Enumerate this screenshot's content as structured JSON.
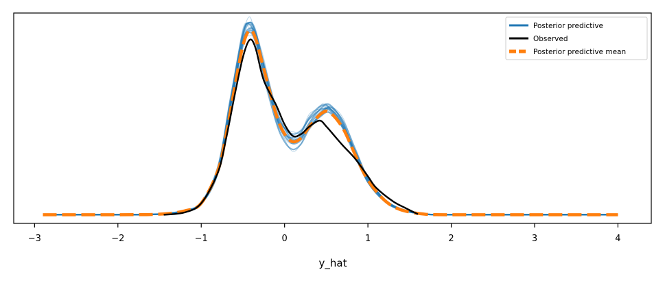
{
  "chart_data": {
    "type": "line",
    "title": "",
    "xlabel": "y_hat",
    "ylabel": "",
    "xlim": [
      -3.25,
      4.4
    ],
    "ylim": [
      -0.045,
      1.05
    ],
    "x_ticks": [
      -3,
      -2,
      -1,
      0,
      1,
      2,
      3,
      4
    ],
    "x_tick_labels": [
      "−3",
      "−2",
      "−1",
      "0",
      "1",
      "2",
      "3",
      "4"
    ],
    "y_ticks_visible": false,
    "grid": false,
    "legend_position": "top-right",
    "colors": {
      "posterior_predictive": "#1f77b4",
      "observed": "#000000",
      "mean": "#ff7f0e"
    },
    "series": [
      {
        "name": "Posterior predictive",
        "style": "many thin translucent blue density curves",
        "x": [
          -2.9,
          -2.0,
          -1.5,
          -1.2,
          -1.0,
          -0.8,
          -0.65,
          -0.5,
          -0.42,
          -0.35,
          -0.25,
          -0.1,
          0.0,
          0.1,
          0.2,
          0.3,
          0.45,
          0.55,
          0.7,
          0.85,
          1.0,
          1.2,
          1.4,
          1.7,
          2.0,
          3.0,
          4.0
        ],
        "draws_y": [
          [
            0.0,
            0.0,
            0.003,
            0.02,
            0.06,
            0.24,
            0.58,
            0.93,
            1.0,
            0.96,
            0.78,
            0.52,
            0.43,
            0.38,
            0.4,
            0.47,
            0.54,
            0.55,
            0.47,
            0.32,
            0.18,
            0.08,
            0.03,
            0.002,
            0.0,
            0.0,
            0.0
          ],
          [
            0.0,
            0.0,
            0.003,
            0.018,
            0.055,
            0.22,
            0.55,
            0.88,
            0.96,
            0.92,
            0.76,
            0.53,
            0.45,
            0.42,
            0.44,
            0.5,
            0.55,
            0.54,
            0.45,
            0.3,
            0.17,
            0.07,
            0.025,
            0.002,
            0.0,
            0.0,
            0.0
          ],
          [
            0.0,
            0.0,
            0.004,
            0.022,
            0.065,
            0.25,
            0.6,
            0.95,
            0.99,
            0.92,
            0.73,
            0.48,
            0.38,
            0.34,
            0.37,
            0.45,
            0.53,
            0.56,
            0.49,
            0.34,
            0.19,
            0.08,
            0.03,
            0.002,
            0.0,
            0.0,
            0.0
          ],
          [
            0.0,
            0.0,
            0.003,
            0.02,
            0.058,
            0.23,
            0.57,
            0.9,
            0.97,
            0.94,
            0.77,
            0.5,
            0.41,
            0.37,
            0.39,
            0.46,
            0.52,
            0.53,
            0.46,
            0.33,
            0.19,
            0.08,
            0.028,
            0.002,
            0.0,
            0.0,
            0.0
          ],
          [
            0.0,
            0.0,
            0.003,
            0.021,
            0.062,
            0.24,
            0.59,
            0.94,
            1.0,
            0.95,
            0.79,
            0.55,
            0.45,
            0.39,
            0.41,
            0.48,
            0.56,
            0.57,
            0.48,
            0.31,
            0.17,
            0.07,
            0.025,
            0.002,
            0.0,
            0.0,
            0.0
          ],
          [
            0.0,
            0.0,
            0.003,
            0.019,
            0.057,
            0.22,
            0.56,
            0.9,
            0.95,
            0.9,
            0.74,
            0.51,
            0.42,
            0.4,
            0.43,
            0.51,
            0.57,
            0.55,
            0.46,
            0.31,
            0.18,
            0.075,
            0.027,
            0.002,
            0.0,
            0.0,
            0.0
          ]
        ]
      },
      {
        "name": "Observed",
        "x": [
          -1.45,
          -1.2,
          -1.0,
          -0.8,
          -0.7,
          -0.6,
          -0.5,
          -0.42,
          -0.35,
          -0.25,
          -0.1,
          0.0,
          0.1,
          0.2,
          0.3,
          0.42,
          0.5,
          0.6,
          0.7,
          0.85,
          1.0,
          1.1,
          1.3,
          1.45,
          1.6
        ],
        "y": [
          0.0,
          0.012,
          0.06,
          0.22,
          0.4,
          0.62,
          0.82,
          0.91,
          0.87,
          0.7,
          0.57,
          0.47,
          0.41,
          0.42,
          0.46,
          0.49,
          0.46,
          0.41,
          0.36,
          0.29,
          0.2,
          0.14,
          0.07,
          0.035,
          0.003
        ]
      },
      {
        "name": "Posterior predictive mean",
        "x": [
          -2.9,
          -2.0,
          -1.5,
          -1.2,
          -1.0,
          -0.8,
          -0.7,
          -0.6,
          -0.5,
          -0.42,
          -0.35,
          -0.25,
          -0.1,
          0.0,
          0.1,
          0.2,
          0.3,
          0.45,
          0.55,
          0.7,
          0.85,
          1.0,
          1.2,
          1.4,
          1.7,
          2.0,
          3.0,
          4.0
        ],
        "y": [
          0.0,
          0.0,
          0.003,
          0.02,
          0.06,
          0.23,
          0.42,
          0.66,
          0.88,
          0.96,
          0.92,
          0.76,
          0.52,
          0.42,
          0.38,
          0.4,
          0.46,
          0.53,
          0.53,
          0.45,
          0.31,
          0.18,
          0.075,
          0.025,
          0.002,
          0.0,
          0.0,
          0.0
        ]
      }
    ]
  }
}
